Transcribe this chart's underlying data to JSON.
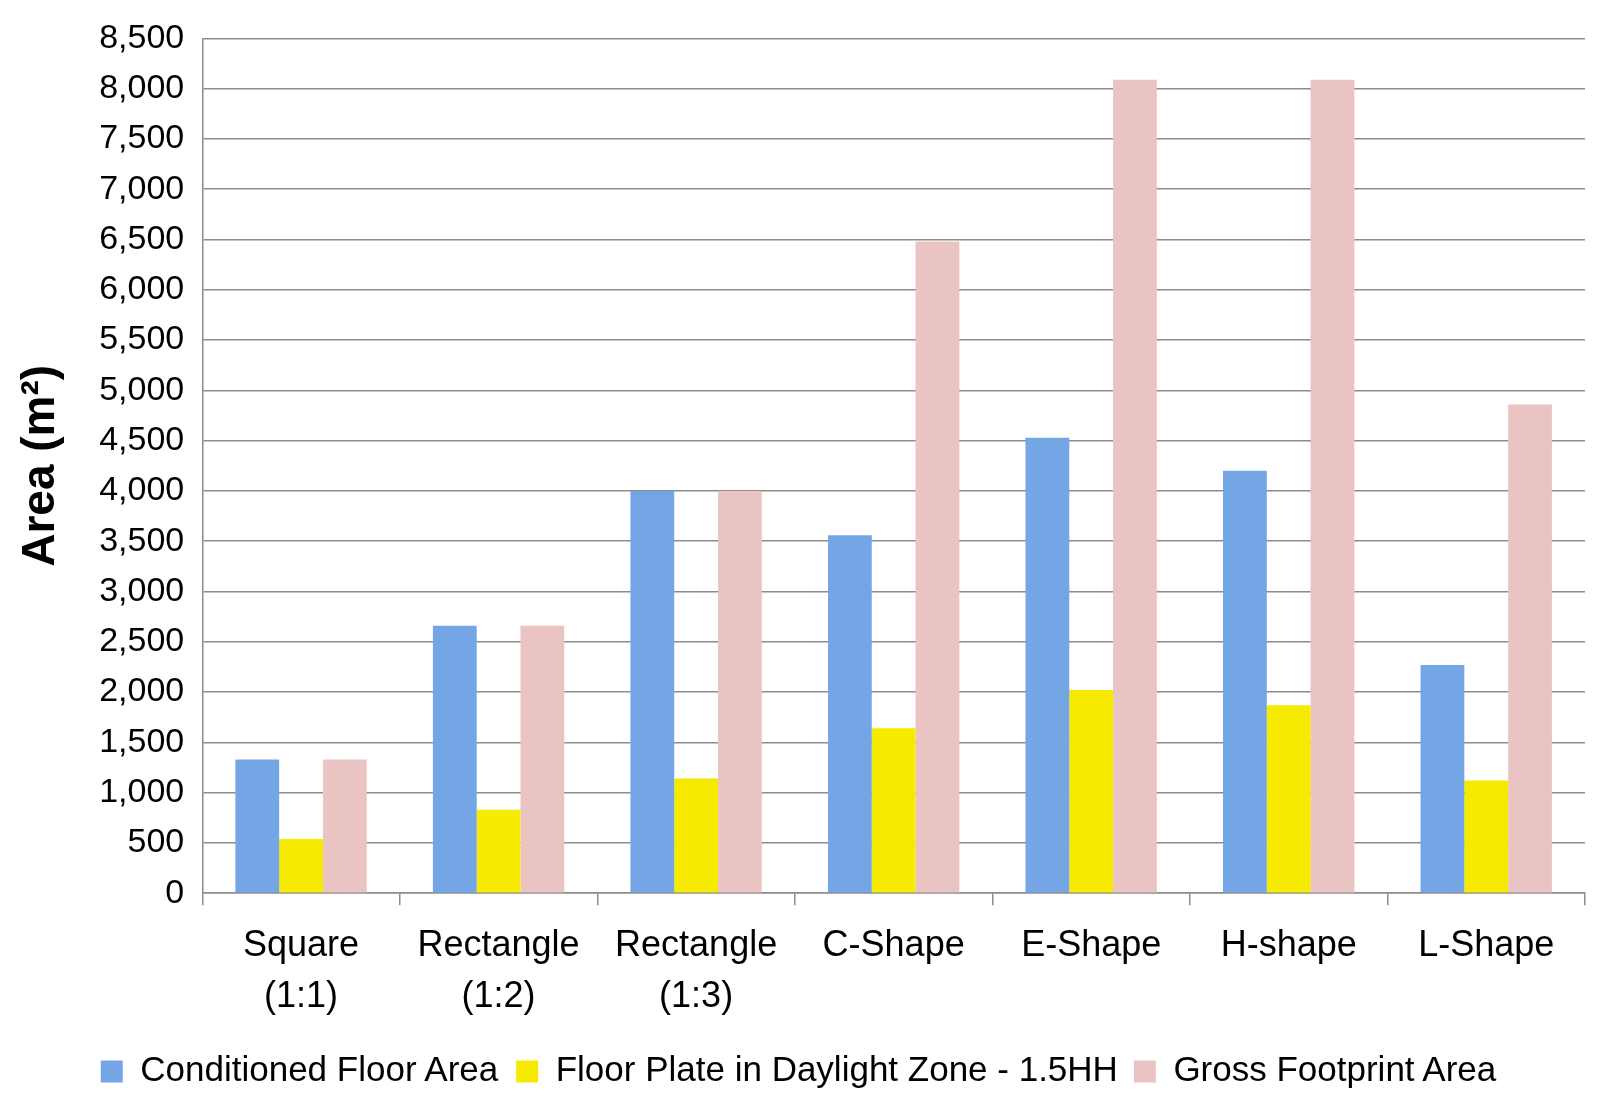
{
  "chart_data": {
    "type": "bar",
    "categories": [
      "Square (1:1)",
      "Rectangle (1:2)",
      "Rectangle (1:3)",
      "C-Shape",
      "E-Shape",
      "H-shape",
      "L-Shape"
    ],
    "series": [
      {
        "name": "Conditioned Floor Area",
        "color": "#74a6e6",
        "values": [
          1330,
          2660,
          4000,
          3560,
          4530,
          4200,
          2270
        ]
      },
      {
        "name": "Floor Plate in Daylight Zone - 1.5HH",
        "color": "#f5ea00",
        "values": [
          540,
          830,
          1140,
          1640,
          2020,
          1870,
          1120
        ]
      },
      {
        "name": "Gross Footprint Area",
        "color": "#eac4c3",
        "values": [
          1330,
          2660,
          4000,
          6480,
          8090,
          8090,
          4860
        ]
      }
    ],
    "ylabel": "Area (m²)",
    "ylim": [
      0,
      8500
    ],
    "yticks": [
      0,
      {
        "value": 500,
        "label": "500"
      },
      {
        "value": 1000,
        "label": "1,000"
      },
      {
        "value": 1500,
        "label": "1,500"
      },
      {
        "value": 2000,
        "label": "2,000"
      },
      {
        "value": 2500,
        "label": "2,500"
      },
      {
        "value": 3000,
        "label": "3,000"
      },
      {
        "value": 3500,
        "label": "3,500"
      },
      {
        "value": 4000,
        "label": "4,000"
      },
      {
        "value": 4500,
        "label": "4,500"
      },
      {
        "value": 5000,
        "label": "5,000"
      },
      {
        "value": 5500,
        "label": "5,500"
      },
      {
        "value": 6000,
        "label": "6,000"
      },
      {
        "value": 6500,
        "label": "6,500"
      },
      {
        "value": 7000,
        "label": "7,000"
      },
      {
        "value": 7500,
        "label": "7,500"
      },
      {
        "value": 8000,
        "label": "8,000"
      },
      {
        "value": 8500,
        "label": "8,500"
      }
    ],
    "grid": "y",
    "legend": "bottom"
  }
}
